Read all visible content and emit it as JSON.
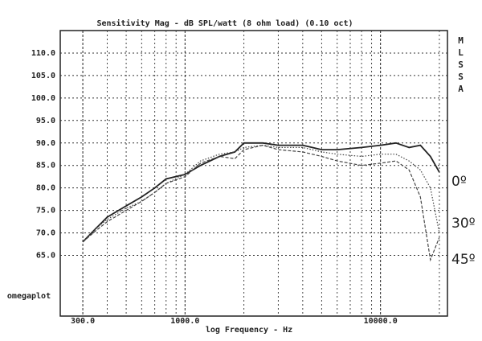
{
  "chart_data": {
    "type": "line",
    "title": "Sensitivity Mag - dB SPL/watt (8 ohm load) (0.10 oct)",
    "xlabel": "log Frequency - Hz",
    "side_label": "MLSSA",
    "corner_label": "omegaplot",
    "xscale": "log",
    "xlim": [
      230,
      22000
    ],
    "xticks": [
      {
        "value": 300,
        "label": "300.0"
      },
      {
        "value": 1000,
        "label": "1000.0"
      },
      {
        "value": 10000,
        "label": "10000.0"
      }
    ],
    "xminorticks": [
      400,
      500,
      600,
      700,
      800,
      900,
      2000,
      3000,
      4000,
      5000,
      6000,
      7000,
      8000,
      9000,
      20000
    ],
    "ylim": [
      51.5,
      115
    ],
    "yticks": [
      {
        "value": 65,
        "label": "65.0"
      },
      {
        "value": 70,
        "label": "70.0"
      },
      {
        "value": 75,
        "label": "75.0"
      },
      {
        "value": 80,
        "label": "80.0"
      },
      {
        "value": 85,
        "label": "85.0"
      },
      {
        "value": 90,
        "label": "90.0"
      },
      {
        "value": 95,
        "label": "95.0"
      },
      {
        "value": 100,
        "label": "100.0"
      },
      {
        "value": 105,
        "label": "105.0"
      },
      {
        "value": 110,
        "label": "110.0"
      }
    ],
    "grid": true,
    "x": [
      300,
      350,
      400,
      500,
      600,
      700,
      800,
      1000,
      1200,
      1500,
      1800,
      2000,
      2500,
      3000,
      4000,
      5000,
      6000,
      8000,
      10000,
      12000,
      14000,
      16000,
      18000,
      20000
    ],
    "series": [
      {
        "name": "0º",
        "color": "#222",
        "style": "solid",
        "values": [
          68,
          71,
          73.5,
          76,
          78,
          80,
          82,
          83,
          85,
          87,
          88,
          90,
          90,
          89.5,
          89.5,
          88.5,
          88.5,
          89,
          89.5,
          90,
          89,
          89.5,
          87,
          83.5
        ]
      },
      {
        "name": "30º",
        "color": "#444",
        "style": "dotted",
        "values": [
          68,
          71,
          73,
          75.5,
          77,
          79,
          81,
          83,
          86,
          87.5,
          88,
          89,
          89.5,
          89,
          89,
          88,
          87.5,
          87,
          87.5,
          87.5,
          86,
          84,
          80,
          70
        ]
      },
      {
        "name": "45º",
        "color": "#444",
        "style": "dashed",
        "values": [
          68,
          70.5,
          72.5,
          75,
          77,
          79,
          81,
          82.5,
          85.5,
          87,
          86.5,
          88.5,
          89.5,
          88.5,
          88,
          87,
          86,
          85,
          85.5,
          86,
          84,
          78,
          64,
          69
        ]
      }
    ]
  }
}
